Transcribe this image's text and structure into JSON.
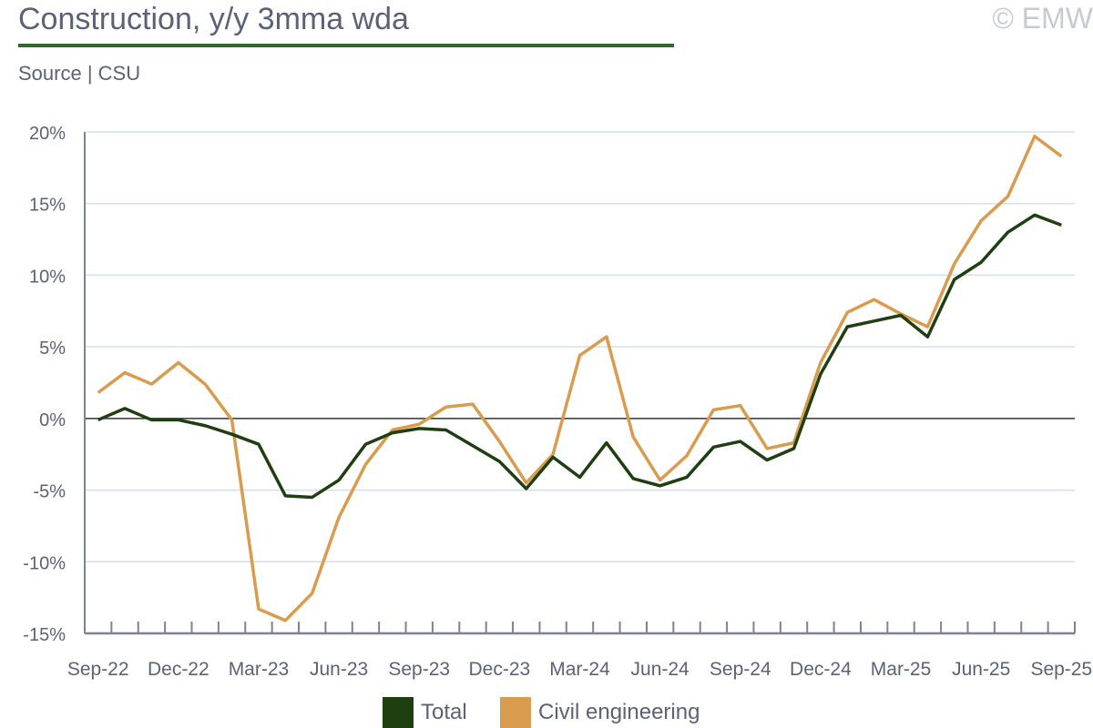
{
  "header": {
    "title": "Construction, y/y 3mma wda",
    "source": "Source | CSU",
    "copyright": "© EMW"
  },
  "chart_data": {
    "type": "line",
    "title": "Construction, y/y 3mma wda",
    "xlabel": "",
    "ylabel": "",
    "ylim": [
      -15,
      20
    ],
    "yticks": [
      -15,
      -10,
      -5,
      0,
      5,
      10,
      15,
      20
    ],
    "ytick_labels": [
      "-15%",
      "-10%",
      "-5%",
      "0%",
      "5%",
      "10%",
      "15%",
      "20%"
    ],
    "x_tick_labels": [
      "Sep-22",
      "Dec-22",
      "Mar-23",
      "Jun-23",
      "Sep-23",
      "Dec-23",
      "Mar-24",
      "Jun-24",
      "Sep-24",
      "Dec-24",
      "Mar-25",
      "Jun-25",
      "Sep-25"
    ],
    "n_points": 37,
    "grid": true,
    "legend": "bottom-center",
    "series": [
      {
        "name": "Total",
        "color": "#1e3f10",
        "values": [
          -0.1,
          0.7,
          -0.1,
          -0.1,
          -0.5,
          -1.1,
          -1.8,
          -5.4,
          -5.5,
          -4.3,
          -1.8,
          -1.0,
          -0.7,
          -0.8,
          -1.9,
          -3.0,
          -4.9,
          -2.7,
          -4.1,
          -1.7,
          -4.2,
          -4.7,
          -4.1,
          -2.0,
          -1.6,
          -2.9,
          -2.1,
          3.1,
          6.4,
          6.8,
          7.2,
          5.7,
          9.7,
          10.9,
          13.0,
          14.2,
          13.5
        ]
      },
      {
        "name": "Civil engineering",
        "color": "#d99b4e",
        "values": [
          1.8,
          3.2,
          2.4,
          3.9,
          2.4,
          -0.1,
          -13.3,
          -14.1,
          -12.2,
          -6.9,
          -3.2,
          -0.8,
          -0.4,
          0.8,
          1.0,
          -1.6,
          -4.5,
          -2.5,
          4.4,
          5.7,
          -1.3,
          -4.3,
          -2.6,
          0.6,
          0.9,
          -2.1,
          -1.7,
          3.9,
          7.4,
          8.3,
          7.3,
          6.4,
          10.8,
          13.8,
          15.5,
          19.7,
          18.3
        ]
      }
    ]
  }
}
